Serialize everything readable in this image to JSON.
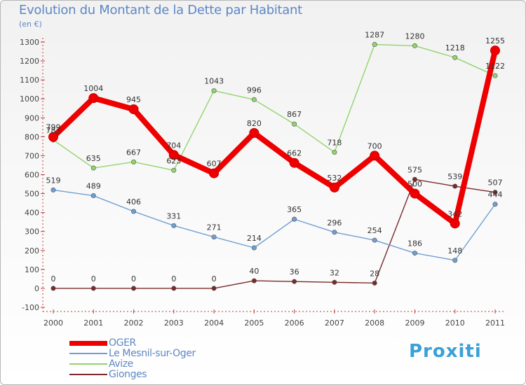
{
  "title": "Evolution du Montant de la Dette par Habitant",
  "unit": "(en €)",
  "brand": "Proxiti",
  "chart_data": {
    "type": "line",
    "title": "Evolution du Montant de la Dette par Habitant",
    "ylabel": "(en €)",
    "xlabel": "",
    "ylim": [
      -100,
      1300
    ],
    "yticks": [
      -100,
      0,
      100,
      200,
      300,
      400,
      500,
      600,
      700,
      800,
      900,
      1000,
      1100,
      1200,
      1300
    ],
    "x": [
      "2000",
      "2001",
      "2002",
      "2003",
      "2004",
      "2005",
      "2006",
      "2007",
      "2008",
      "2009",
      "2010",
      "2011"
    ],
    "grid": false,
    "legend": "bottom-left",
    "series": [
      {
        "name": "OGER",
        "color": "#ee0000",
        "values": [
          799,
          1004,
          945,
          704,
          607,
          820,
          662,
          532,
          700,
          500,
          342,
          1255
        ]
      },
      {
        "name": "Le Mesnil-sur-Oger",
        "color": "#6f9ed1",
        "values": [
          519,
          489,
          406,
          331,
          271,
          214,
          365,
          296,
          254,
          186,
          148,
          444
        ]
      },
      {
        "name": "Avize",
        "color": "#92d46c",
        "values": [
          783,
          635,
          667,
          623,
          1043,
          996,
          867,
          718,
          1287,
          1280,
          1218,
          1122
        ]
      },
      {
        "name": "Gionges",
        "color": "#7a2a2a",
        "values": [
          0,
          0,
          0,
          0,
          0,
          40,
          36,
          32,
          28,
          575,
          539,
          507
        ]
      }
    ]
  }
}
